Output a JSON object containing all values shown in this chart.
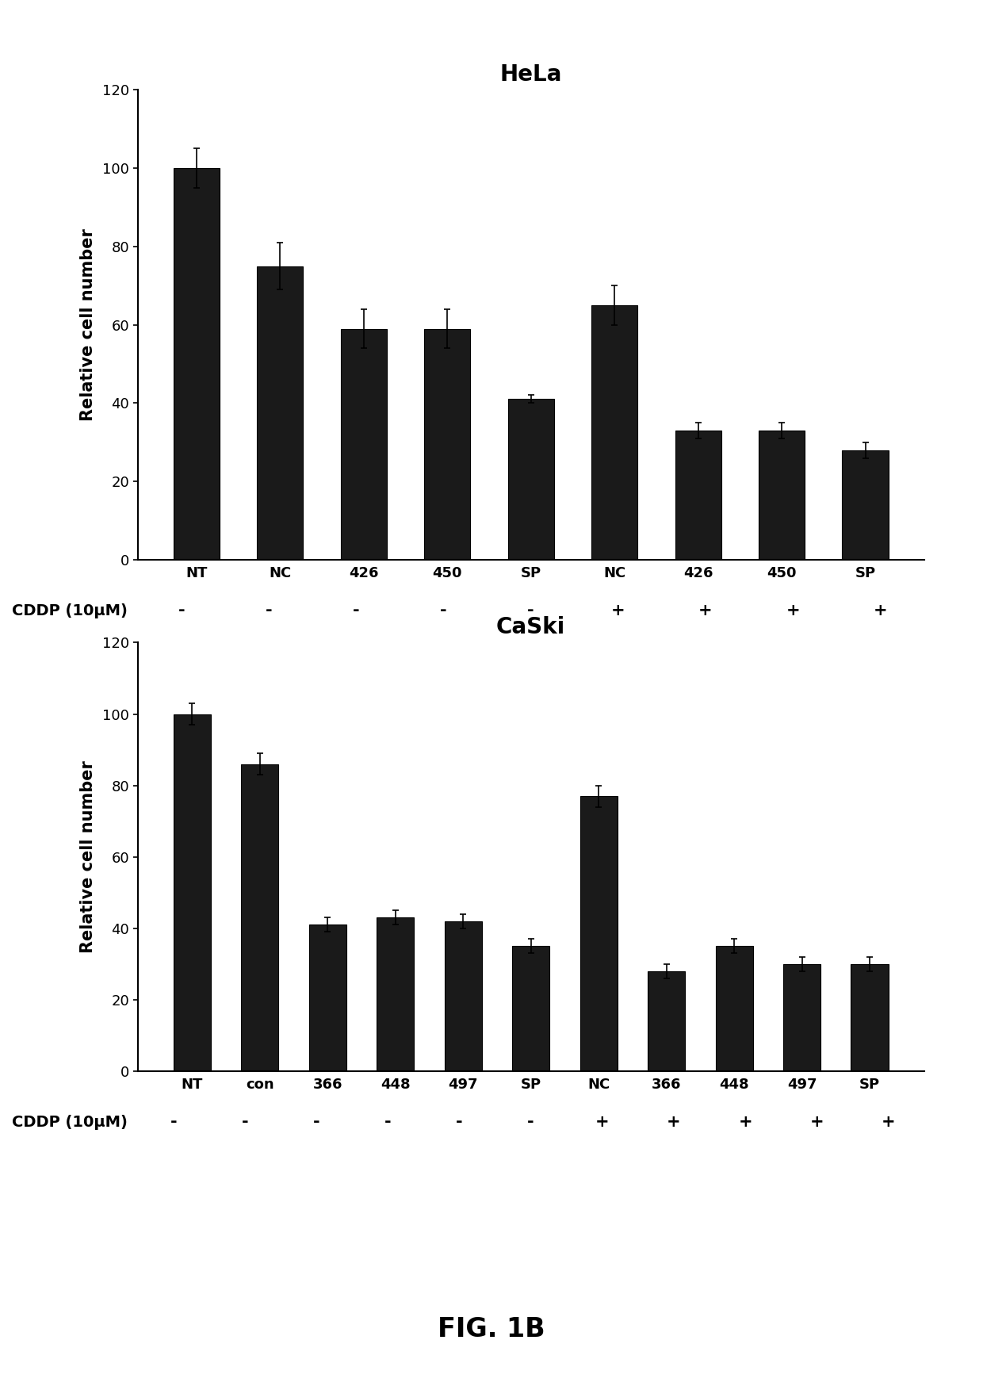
{
  "hela": {
    "title": "HeLa",
    "categories": [
      "NT",
      "NC",
      "426",
      "450",
      "SP",
      "NC",
      "426",
      "450",
      "SP"
    ],
    "values": [
      100,
      75,
      59,
      59,
      41,
      65,
      33,
      33,
      28
    ],
    "errors": [
      5,
      6,
      5,
      5,
      1,
      5,
      2,
      2,
      2
    ],
    "cddp_signs": [
      "-",
      "-",
      "-",
      "-",
      "-",
      "+",
      "+",
      "+",
      "+"
    ],
    "ylabel": "Relative cell number",
    "ylim": [
      0,
      120
    ],
    "yticks": [
      0,
      20,
      40,
      60,
      80,
      100,
      120
    ]
  },
  "caski": {
    "title": "CaSki",
    "categories": [
      "NT",
      "con",
      "366",
      "448",
      "497",
      "SP",
      "NC",
      "366",
      "448",
      "497",
      "SP"
    ],
    "values": [
      100,
      86,
      41,
      43,
      42,
      35,
      77,
      28,
      35,
      30,
      30
    ],
    "errors": [
      3,
      3,
      2,
      2,
      2,
      2,
      3,
      2,
      2,
      2,
      2
    ],
    "cddp_signs": [
      "-",
      "-",
      "-",
      "-",
      "-",
      "-",
      "+",
      "+",
      "+",
      "+",
      "+"
    ],
    "ylabel": "Relative cell number",
    "ylim": [
      0,
      120
    ],
    "yticks": [
      0,
      20,
      40,
      60,
      80,
      100,
      120
    ]
  },
  "bar_color": "#1a1a1a",
  "bar_edgecolor": "#000000",
  "cddp_label": "CDDP (10μM)",
  "fig_label": "FIG. 1B",
  "background_color": "#ffffff",
  "bar_width": 0.55,
  "title_fontsize": 20,
  "axis_fontsize": 15,
  "tick_fontsize": 13,
  "cddp_fontsize": 14,
  "fig_label_fontsize": 24
}
